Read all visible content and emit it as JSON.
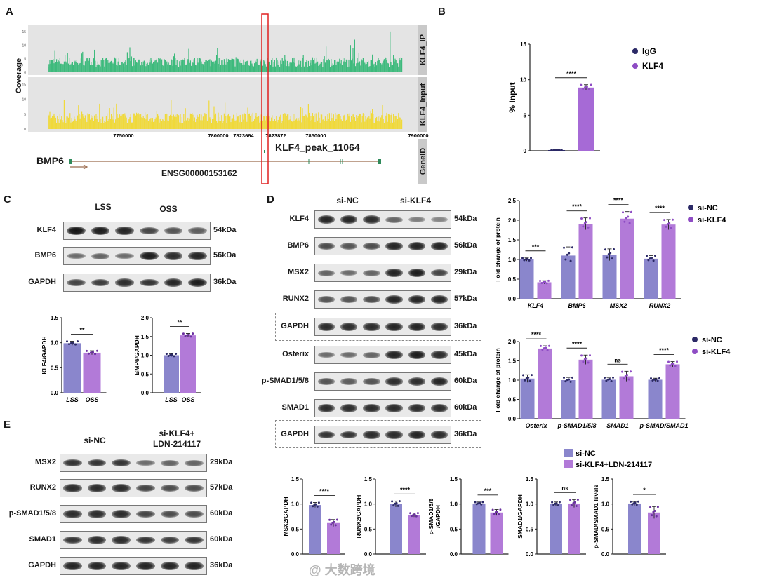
{
  "panel_labels": {
    "a": "A",
    "b": "B",
    "c": "C",
    "d": "D",
    "e": "E"
  },
  "panel_a": {
    "y_axis_label": "Coverage",
    "track_ip": "KLF4_IP",
    "track_input": "KLF4_Input",
    "track_gene": "GeneID",
    "y_ticks": [
      "15",
      "10",
      "5",
      "0"
    ],
    "x_ticks": [
      "7750000",
      "7800000",
      "7823664",
      "7823872",
      "7850000",
      "7900000"
    ],
    "peak_label": "KLF4_peak_11064",
    "gene_name": "BMP6",
    "gene_id": "ENSG00000153162",
    "colors": {
      "ip": "#3dba7c",
      "input": "#f0d93a",
      "highlight": "#e02020",
      "gene": "#9a6a4c",
      "exon": "#2f8a5a"
    }
  },
  "panel_c": {
    "groups": [
      "LSS",
      "OSS"
    ],
    "rows": [
      {
        "protein": "KLF4",
        "kda": "54kDa",
        "intensity": [
          1,
          0.95,
          0.9,
          0.7,
          0.6,
          0.55
        ]
      },
      {
        "protein": "BMP6",
        "kda": "56kDa",
        "intensity": [
          0.45,
          0.5,
          0.45,
          0.95,
          0.85,
          0.9
        ]
      },
      {
        "protein": "GAPDH",
        "kda": "36kDa",
        "intensity": [
          0.7,
          0.75,
          0.85,
          0.8,
          0.9,
          0.95
        ]
      }
    ]
  },
  "panel_d": {
    "groups": [
      "si-NC",
      "si-KLF4"
    ],
    "rows": [
      {
        "protein": "KLF4",
        "kda": "54kDa",
        "intensity": [
          0.9,
          0.9,
          0.85,
          0.5,
          0.35,
          0.3
        ]
      },
      {
        "protein": "BMP6",
        "kda": "56kDa",
        "intensity": [
          0.65,
          0.6,
          0.65,
          0.9,
          0.9,
          0.9
        ]
      },
      {
        "protein": "MSX2",
        "kda": "29kDa",
        "intensity": [
          0.5,
          0.45,
          0.5,
          0.9,
          0.95,
          0.7
        ]
      },
      {
        "protein": "RUNX2",
        "kda": "57kDa",
        "intensity": [
          0.6,
          0.6,
          0.65,
          0.9,
          0.9,
          0.9
        ]
      },
      {
        "protein": "GAPDH",
        "kda": "36kDa",
        "intensity": [
          0.85,
          0.85,
          0.85,
          0.9,
          0.9,
          0.85
        ]
      },
      {
        "protein": "Osterix",
        "kda": "45kDa",
        "intensity": [
          0.45,
          0.45,
          0.5,
          0.9,
          0.95,
          0.85
        ]
      },
      {
        "protein": "p-SMAD1/5/8",
        "kda": "60kDa",
        "intensity": [
          0.6,
          0.55,
          0.6,
          0.85,
          0.85,
          0.9
        ]
      },
      {
        "protein": "SMAD1",
        "kda": "60kDa",
        "intensity": [
          0.85,
          0.85,
          0.85,
          0.85,
          0.85,
          0.85
        ]
      },
      {
        "protein": "GAPDH",
        "kda": "36kDa",
        "intensity": [
          0.8,
          0.8,
          0.85,
          0.85,
          0.9,
          0.85
        ]
      }
    ]
  },
  "panel_e": {
    "groups": [
      "si-NC",
      "si-KLF4+",
      "LDN-214117"
    ],
    "rows": [
      {
        "protein": "MSX2",
        "kda": "29kDa",
        "intensity": [
          0.8,
          0.8,
          0.8,
          0.45,
          0.5,
          0.5
        ]
      },
      {
        "protein": "RUNX2",
        "kda": "57kDa",
        "intensity": [
          0.85,
          0.85,
          0.85,
          0.7,
          0.65,
          0.65
        ]
      },
      {
        "protein": "p-SMAD1/5/8",
        "kda": "60kDa",
        "intensity": [
          0.85,
          0.85,
          0.85,
          0.7,
          0.65,
          0.65
        ]
      },
      {
        "protein": "SMAD1",
        "kda": "60kDa",
        "intensity": [
          0.8,
          0.85,
          0.85,
          0.8,
          0.75,
          0.8
        ]
      },
      {
        "protein": "GAPDH",
        "kda": "36kDa",
        "intensity": [
          0.9,
          0.9,
          0.9,
          0.9,
          0.9,
          0.9
        ]
      }
    ]
  },
  "watermark": "大数跨境",
  "chart_data": [
    {
      "id": "B",
      "type": "bar",
      "title": "",
      "xlabel": "",
      "ylabel": "% Input",
      "ylim": [
        0,
        15
      ],
      "yticks": [
        0,
        5,
        10,
        15
      ],
      "categories": [
        ""
      ],
      "bar_labels": [],
      "series": [
        {
          "name": "IgG",
          "color": "#2b2966",
          "marker_color": "#2b2966",
          "values": [
            0.1
          ],
          "errors": [
            0.05
          ]
        },
        {
          "name": "KLF4",
          "color": "#a66ad6",
          "marker_color": "#8e4cc4",
          "values": [
            8.9
          ],
          "errors": [
            0.4
          ]
        }
      ],
      "significance": [
        "****"
      ],
      "legend": "right"
    },
    {
      "id": "C1",
      "type": "bar",
      "title": "",
      "xlabel": "",
      "ylabel": "KLF4/GAPDH",
      "ylim": [
        0,
        1.5
      ],
      "yticks": [
        0,
        0.5,
        1.0,
        1.5
      ],
      "categories": [
        ""
      ],
      "bar_labels": [
        "LSS",
        "OSS"
      ],
      "series": [
        {
          "name": "LSS",
          "color": "#8a86cc",
          "marker_color": "#2b2966",
          "values": [
            0.99
          ],
          "errors": [
            0.04
          ]
        },
        {
          "name": "OSS",
          "color": "#b27ad8",
          "marker_color": "#6a2fa0",
          "values": [
            0.8
          ],
          "errors": [
            0.04
          ]
        }
      ],
      "significance": [
        "**"
      ],
      "legend": "none"
    },
    {
      "id": "C2",
      "type": "bar",
      "title": "",
      "xlabel": "",
      "ylabel": "BMP6/GAPDH",
      "ylim": [
        0,
        2.0
      ],
      "yticks": [
        0,
        0.5,
        1.0,
        1.5,
        2.0
      ],
      "categories": [
        ""
      ],
      "bar_labels": [
        "LSS",
        "OSS"
      ],
      "series": [
        {
          "name": "LSS",
          "color": "#8a86cc",
          "marker_color": "#2b2966",
          "values": [
            1.0
          ],
          "errors": [
            0.04
          ]
        },
        {
          "name": "OSS",
          "color": "#b27ad8",
          "marker_color": "#6a2fa0",
          "values": [
            1.53
          ],
          "errors": [
            0.05
          ]
        }
      ],
      "significance": [
        "**"
      ],
      "legend": "none"
    },
    {
      "id": "D1",
      "type": "bar",
      "title": "",
      "xlabel": "",
      "ylabel": "Fold change of protein",
      "ylim": [
        0,
        2.5
      ],
      "yticks": [
        0,
        0.5,
        1.0,
        1.5,
        2.0,
        2.5
      ],
      "categories": [
        "KLF4",
        "BMP6",
        "MSX2",
        "RUNX2"
      ],
      "bar_labels": [],
      "series": [
        {
          "name": "si-NC",
          "color": "#8a86cc",
          "marker_color": "#2b2966",
          "values": [
            1.0,
            1.1,
            1.12,
            1.02
          ],
          "errors": [
            0.04,
            0.22,
            0.15,
            0.08
          ]
        },
        {
          "name": "si-KLF4",
          "color": "#b27ad8",
          "marker_color": "#8e4cc4",
          "values": [
            0.42,
            1.91,
            2.04,
            1.89
          ],
          "errors": [
            0.04,
            0.15,
            0.18,
            0.13
          ]
        }
      ],
      "significance": [
        "***",
        "****",
        "****",
        "****"
      ],
      "legend": "right"
    },
    {
      "id": "D2",
      "type": "bar",
      "title": "",
      "xlabel": "",
      "ylabel": "Fold change of protein",
      "ylim": [
        0,
        2.0
      ],
      "yticks": [
        0,
        0.5,
        1.0,
        1.5,
        2.0
      ],
      "categories": [
        "Osterix",
        "p-SMAD1/5/8",
        "SMAD1",
        "p-SMAD/SMAD1"
      ],
      "bar_labels": [],
      "series": [
        {
          "name": "si-NC",
          "color": "#8a86cc",
          "marker_color": "#2b2966",
          "values": [
            1.04,
            1.0,
            1.01,
            1.01
          ],
          "errors": [
            0.1,
            0.07,
            0.06,
            0.04
          ]
        },
        {
          "name": "si-KLF4",
          "color": "#b27ad8",
          "marker_color": "#8e4cc4",
          "values": [
            1.82,
            1.53,
            1.1,
            1.41
          ],
          "errors": [
            0.07,
            0.12,
            0.13,
            0.07
          ]
        }
      ],
      "significance": [
        "****",
        "****",
        "ns",
        "****"
      ],
      "legend": "right"
    },
    {
      "id": "E1",
      "type": "bar",
      "title": "",
      "xlabel": "",
      "ylabel": "MSX2/GAPDH",
      "ylim": [
        0,
        1.5
      ],
      "yticks": [
        0,
        0.5,
        1.0,
        1.5
      ],
      "categories": [
        ""
      ],
      "bar_labels": [],
      "series": [
        {
          "name": "si-NC",
          "color": "#8a86cc",
          "marker_color": "#2b2966",
          "values": [
            0.98
          ],
          "errors": [
            0.05
          ]
        },
        {
          "name": "si-KLF4+LDN-214117",
          "color": "#b27ad8",
          "marker_color": "#6a2fa0",
          "values": [
            0.62
          ],
          "errors": [
            0.07
          ]
        }
      ],
      "significance": [
        "****"
      ],
      "legend": "right"
    },
    {
      "id": "E2",
      "type": "bar",
      "title": "",
      "xlabel": "",
      "ylabel": "RUNX2/GAPDH",
      "ylim": [
        0,
        1.5
      ],
      "yticks": [
        0,
        0.5,
        1.0,
        1.5
      ],
      "categories": [
        ""
      ],
      "bar_labels": [],
      "series": [
        {
          "name": "si-NC",
          "color": "#8a86cc",
          "marker_color": "#2b2966",
          "values": [
            1.0
          ],
          "errors": [
            0.06
          ]
        },
        {
          "name": "si-KLF4+LDN-214117",
          "color": "#b27ad8",
          "marker_color": "#6a2fa0",
          "values": [
            0.78
          ],
          "errors": [
            0.04
          ]
        }
      ],
      "significance": [
        "****"
      ],
      "legend": "none"
    },
    {
      "id": "E3",
      "type": "bar",
      "title": "",
      "xlabel": "",
      "ylabel": "p-SMAD1/5/8 /GAPDH",
      "ylim": [
        0,
        1.5
      ],
      "yticks": [
        0,
        0.5,
        1.0,
        1.5
      ],
      "categories": [
        ""
      ],
      "bar_labels": [],
      "series": [
        {
          "name": "si-NC",
          "color": "#8a86cc",
          "marker_color": "#2b2966",
          "values": [
            1.01
          ],
          "errors": [
            0.03
          ]
        },
        {
          "name": "si-KLF4+LDN-214117",
          "color": "#b27ad8",
          "marker_color": "#6a2fa0",
          "values": [
            0.83
          ],
          "errors": [
            0.06
          ]
        }
      ],
      "significance": [
        "***"
      ],
      "legend": "none"
    },
    {
      "id": "E4",
      "type": "bar",
      "title": "",
      "xlabel": "",
      "ylabel": "SMAD1/GAPDH",
      "ylim": [
        0,
        1.5
      ],
      "yticks": [
        0,
        0.5,
        1.0,
        1.5
      ],
      "categories": [
        ""
      ],
      "bar_labels": [],
      "series": [
        {
          "name": "si-NC",
          "color": "#8a86cc",
          "marker_color": "#2b2966",
          "values": [
            1.0
          ],
          "errors": [
            0.04
          ]
        },
        {
          "name": "si-KLF4+LDN-214117",
          "color": "#b27ad8",
          "marker_color": "#6a2fa0",
          "values": [
            1.01
          ],
          "errors": [
            0.08
          ]
        }
      ],
      "significance": [
        "ns"
      ],
      "legend": "none"
    },
    {
      "id": "E5",
      "type": "bar",
      "title": "",
      "xlabel": "",
      "ylabel": "p-SMAD/SMAD1 levels",
      "ylim": [
        0,
        1.5
      ],
      "yticks": [
        0,
        0.5,
        1.0,
        1.5
      ],
      "categories": [
        ""
      ],
      "bar_labels": [],
      "series": [
        {
          "name": "si-NC",
          "color": "#8a86cc",
          "marker_color": "#2b2966",
          "values": [
            1.01
          ],
          "errors": [
            0.04
          ]
        },
        {
          "name": "si-KLF4+LDN-214117",
          "color": "#b27ad8",
          "marker_color": "#6a2fa0",
          "values": [
            0.83
          ],
          "errors": [
            0.12
          ]
        }
      ],
      "significance": [
        "*"
      ],
      "legend": "none"
    }
  ]
}
